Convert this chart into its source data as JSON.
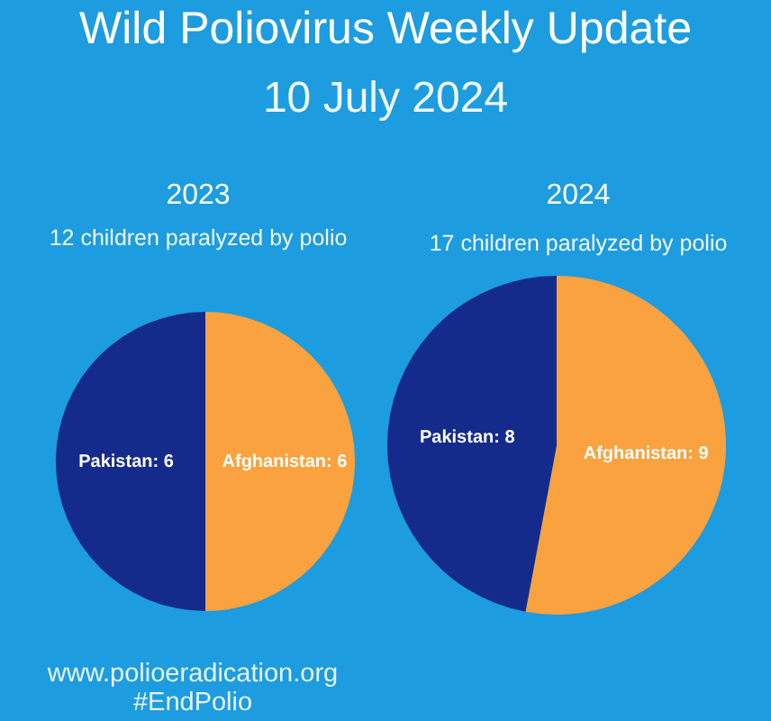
{
  "chart_data": [
    {
      "type": "other",
      "title": "Wild Poliovirus Weekly Update",
      "subtitle": "10 July 2024"
    },
    {
      "type": "pie",
      "title": "2023",
      "subtitle": "12 children paralyzed by polio",
      "categories": [
        "Afghanistan",
        "Pakistan"
      ],
      "values": [
        6,
        6
      ],
      "colors": [
        "#f9a23f",
        "#142b8c"
      ],
      "value_labels": [
        ": 6",
        ": 6"
      ]
    },
    {
      "type": "pie",
      "title": "2024",
      "subtitle": "17 children paralyzed by polio",
      "categories": [
        "Afghanistan",
        "Pakistan"
      ],
      "values": [
        9,
        8
      ],
      "colors": [
        "#f9a23f",
        "#142b8c"
      ],
      "value_labels": [
        ": 9",
        ": 8"
      ]
    },
    {
      "type": "other",
      "annotations": [
        "www.polioeradication.org",
        "#EndPolio"
      ]
    }
  ]
}
